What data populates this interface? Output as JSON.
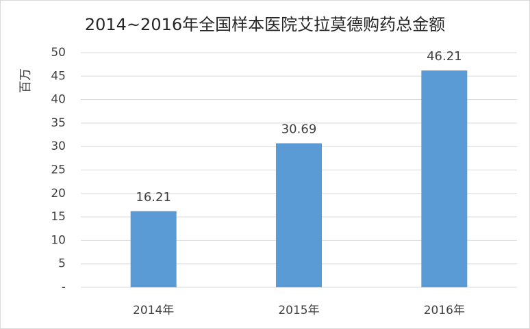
{
  "chart_data": {
    "type": "bar",
    "title": "2014~2016年全国样本医院艾拉莫德购药总金额",
    "y_label": "百万",
    "categories": [
      "2014年",
      "2015年",
      "2016年"
    ],
    "values": [
      16.21,
      30.69,
      46.21
    ],
    "color": "#5b9bd5",
    "ylim": [
      0,
      50
    ],
    "yticks": [
      {
        "value": 0,
        "label": "-"
      },
      5,
      10,
      15,
      20,
      25,
      30,
      35,
      40,
      45,
      50
    ],
    "grid": true
  }
}
